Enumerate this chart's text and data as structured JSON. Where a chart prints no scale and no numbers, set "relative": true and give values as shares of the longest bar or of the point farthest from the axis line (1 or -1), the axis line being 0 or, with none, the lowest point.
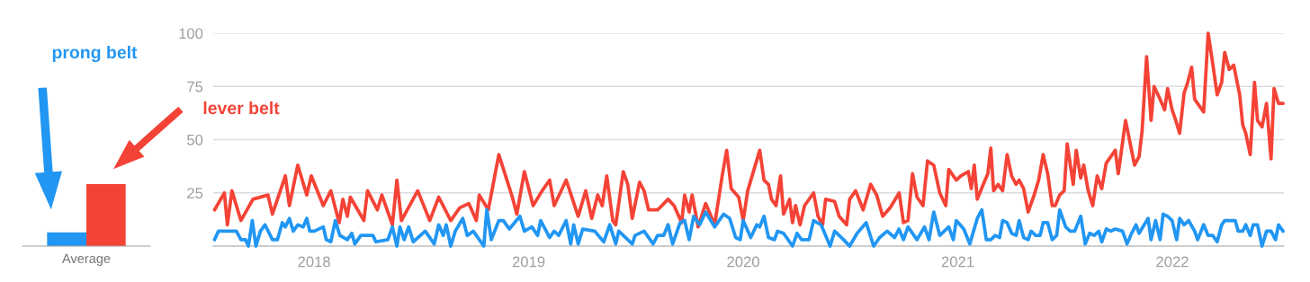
{
  "chart_data": [
    {
      "type": "bar",
      "categories": [
        "Average"
      ],
      "relative": true,
      "legend": false,
      "series": [
        {
          "name": "prong belt",
          "color": "#2196f3",
          "values": [
            0.22
          ]
        },
        {
          "name": "lever belt",
          "color": "#f44336",
          "values": [
            1
          ]
        }
      ]
    },
    {
      "type": "line",
      "xlim": [
        2017.53,
        2022.52
      ],
      "ylim": [
        0,
        100
      ],
      "yticks": [
        25,
        50,
        75,
        100
      ],
      "xticks": [
        {
          "value": 2018,
          "label": "2018"
        },
        {
          "value": 2019,
          "label": "2019"
        },
        {
          "value": 2020,
          "label": "2020"
        },
        {
          "value": 2021,
          "label": "2021"
        },
        {
          "value": 2022,
          "label": "2022"
        }
      ],
      "grid": "y",
      "legend": false,
      "marker": "none",
      "line_style": "solid",
      "series": [
        {
          "color": "#f44336",
          "x": [
            2017.536,
            2017.582,
            2017.596,
            2017.617,
            2017.659,
            2017.715,
            2017.785,
            2017.806,
            2017.866,
            2017.885,
            2017.924,
            2017.966,
            2017.987,
            2018.043,
            2018.078,
            2018.117,
            2018.134,
            2018.155,
            2018.169,
            2018.232,
            2018.249,
            2018.295,
            2018.316,
            2018.365,
            2018.386,
            2018.407,
            2018.483,
            2018.539,
            2018.581,
            2018.637,
            2018.679,
            2018.721,
            2018.756,
            2018.77,
            2018.812,
            2018.861,
            2018.924,
            2018.945,
            2018.98,
            2019.021,
            2019.063,
            2019.098,
            2019.119,
            2019.175,
            2019.231,
            2019.266,
            2019.294,
            2019.322,
            2019.343,
            2019.364,
            2019.392,
            2019.406,
            2019.441,
            2019.462,
            2019.483,
            2019.517,
            2019.538,
            2019.559,
            2019.601,
            2019.65,
            2019.678,
            2019.713,
            2019.727,
            2019.748,
            2019.762,
            2019.79,
            2019.825,
            2019.867,
            2019.902,
            2019.923,
            2019.944,
            2019.979,
            2020.0,
            2020.021,
            2020.077,
            2020.097,
            2020.118,
            2020.132,
            2020.153,
            2020.174,
            2020.188,
            2020.216,
            2020.23,
            2020.244,
            2020.265,
            2020.286,
            2020.328,
            2020.349,
            2020.37,
            2020.384,
            2020.426,
            2020.447,
            2020.482,
            2020.496,
            2020.524,
            2020.559,
            2020.594,
            2020.622,
            2020.65,
            2020.685,
            2020.727,
            2020.747,
            2020.768,
            2020.789,
            2020.81,
            2020.838,
            2020.859,
            2020.888,
            2020.916,
            2020.944,
            2020.958,
            2020.993,
            2021.014,
            2021.049,
            2021.063,
            2021.077,
            2021.091,
            2021.119,
            2021.14,
            2021.154,
            2021.167,
            2021.188,
            2021.209,
            2021.23,
            2021.251,
            2021.272,
            2021.286,
            2021.307,
            2021.328,
            2021.356,
            2021.377,
            2021.398,
            2021.419,
            2021.44,
            2021.454,
            2021.475,
            2021.496,
            2021.51,
            2021.538,
            2021.552,
            2021.573,
            2021.587,
            2021.608,
            2021.629,
            2021.65,
            2021.671,
            2021.692,
            2021.734,
            2021.748,
            2021.782,
            2021.824,
            2021.845,
            2021.859,
            2021.88,
            2021.901,
            2021.915,
            2021.943,
            2021.964,
            2021.978,
            2021.999,
            2022.013,
            2022.034,
            2022.055,
            2022.069,
            2022.09,
            2022.104,
            2022.125,
            2022.146,
            2022.167,
            2022.188,
            2022.209,
            2022.23,
            2022.244,
            2022.265,
            2022.286,
            2022.314,
            2022.328,
            2022.342,
            2022.363,
            2022.383,
            2022.397,
            2022.418,
            2022.439,
            2022.46,
            2022.474,
            2022.495,
            2022.516
          ],
          "values": [
            17,
            25,
            10,
            26,
            12,
            22,
            24,
            15,
            33,
            19,
            38,
            24,
            33,
            19,
            26,
            11,
            22,
            14,
            23,
            12,
            26,
            17,
            24,
            10,
            31,
            12,
            26,
            12,
            23,
            12,
            18,
            20,
            12,
            24,
            17,
            43,
            23,
            15,
            35,
            19,
            26,
            31,
            19,
            31,
            14,
            26,
            13,
            24,
            19,
            33,
            12,
            10,
            35,
            29,
            13,
            30,
            26,
            17,
            17,
            22,
            19,
            11,
            24,
            16,
            24,
            9,
            20,
            10,
            33,
            45,
            27,
            23,
            12,
            26,
            45,
            31,
            29,
            22,
            19,
            33,
            15,
            22,
            11,
            19,
            10,
            19,
            25,
            14,
            10,
            22,
            21,
            14,
            10,
            22,
            26,
            17,
            29,
            24,
            14,
            18,
            25,
            11,
            12,
            34,
            23,
            19,
            40,
            38,
            25,
            19,
            36,
            31,
            33,
            35,
            27,
            38,
            22,
            29,
            34,
            46,
            26,
            29,
            26,
            43,
            33,
            29,
            31,
            27,
            16,
            24,
            31,
            43,
            34,
            19,
            19,
            24,
            26,
            48,
            29,
            45,
            32,
            38,
            26,
            19,
            33,
            27,
            39,
            45,
            34,
            59,
            38,
            42,
            54,
            89,
            59,
            75,
            69,
            64,
            74,
            64,
            60,
            53,
            72,
            76,
            84,
            69,
            66,
            63,
            100,
            86,
            71,
            77,
            91,
            83,
            85,
            71,
            57,
            53,
            43,
            77,
            59,
            56,
            67,
            41,
            74,
            67,
            67
          ]
        },
        {
          "color": "#2196f3",
          "x": [
            2017.536,
            2017.554,
            2017.638,
            2017.659,
            2017.68,
            2017.694,
            2017.712,
            2017.729,
            2017.75,
            2017.771,
            2017.806,
            2017.829,
            2017.852,
            2017.866,
            2017.885,
            2017.903,
            2017.924,
            2017.949,
            2017.966,
            2017.98,
            2018.001,
            2018.043,
            2018.057,
            2018.078,
            2018.099,
            2018.12,
            2018.155,
            2018.176,
            2018.19,
            2018.218,
            2018.274,
            2018.288,
            2018.344,
            2018.365,
            2018.386,
            2018.4,
            2018.42,
            2018.441,
            2018.462,
            2018.518,
            2018.56,
            2018.581,
            2018.602,
            2018.616,
            2018.637,
            2018.658,
            2018.693,
            2018.714,
            2018.742,
            2018.791,
            2018.805,
            2018.826,
            2018.861,
            2018.882,
            2018.91,
            2018.959,
            2018.98,
            2019.015,
            2019.042,
            2019.056,
            2019.098,
            2019.119,
            2019.14,
            2019.175,
            2019.196,
            2019.21,
            2019.231,
            2019.252,
            2019.308,
            2019.35,
            2019.378,
            2019.406,
            2019.42,
            2019.483,
            2019.496,
            2019.538,
            2019.58,
            2019.601,
            2019.629,
            2019.65,
            2019.671,
            2019.706,
            2019.727,
            2019.748,
            2019.769,
            2019.797,
            2019.825,
            2019.867,
            2019.909,
            2019.937,
            2019.965,
            2019.986,
            2020.0,
            2020.035,
            2020.063,
            2020.077,
            2020.097,
            2020.118,
            2020.146,
            2020.16,
            2020.188,
            2020.23,
            2020.251,
            2020.272,
            2020.307,
            2020.328,
            2020.363,
            2020.405,
            2020.426,
            2020.468,
            2020.496,
            2020.531,
            2020.573,
            2020.608,
            2020.636,
            2020.671,
            2020.705,
            2020.726,
            2020.747,
            2020.768,
            2020.81,
            2020.845,
            2020.866,
            2020.888,
            2020.916,
            2020.958,
            2020.979,
            2020.993,
            2021.028,
            2021.056,
            2021.091,
            2021.112,
            2021.133,
            2021.154,
            2021.174,
            2021.195,
            2021.209,
            2021.23,
            2021.251,
            2021.272,
            2021.286,
            2021.307,
            2021.328,
            2021.342,
            2021.363,
            2021.384,
            2021.398,
            2021.419,
            2021.44,
            2021.461,
            2021.475,
            2021.503,
            2021.524,
            2021.545,
            2021.573,
            2021.594,
            2021.615,
            2021.636,
            2021.657,
            2021.671,
            2021.692,
            2021.713,
            2021.734,
            2021.768,
            2021.789,
            2021.81,
            2021.831,
            2021.845,
            2021.887,
            2021.901,
            2021.922,
            2021.943,
            2021.957,
            2021.978,
            2021.999,
            2022.02,
            2022.034,
            2022.055,
            2022.076,
            2022.104,
            2022.118,
            2022.146,
            2022.167,
            2022.188,
            2022.209,
            2022.23,
            2022.244,
            2022.293,
            2022.307,
            2022.328,
            2022.342,
            2022.363,
            2022.377,
            2022.397,
            2022.418,
            2022.439,
            2022.46,
            2022.481,
            2022.495,
            2022.516
          ],
          "values": [
            3,
            7,
            7,
            3,
            3,
            0,
            12,
            0,
            7,
            10,
            3,
            3,
            11,
            9,
            13,
            7,
            10,
            9,
            13,
            7,
            7,
            9,
            3,
            2,
            12,
            5,
            3,
            6,
            1,
            5,
            5,
            2,
            3,
            9,
            0,
            9,
            3,
            9,
            2,
            7,
            1,
            10,
            5,
            10,
            0,
            7,
            13,
            5,
            7,
            0,
            17,
            3,
            12,
            12,
            8,
            14,
            7,
            9,
            5,
            12,
            4,
            7,
            5,
            12,
            1,
            10,
            1,
            8,
            7,
            2,
            10,
            1,
            7,
            1,
            5,
            7,
            1,
            5,
            5,
            10,
            1,
            11,
            12,
            3,
            14,
            10,
            16,
            9,
            15,
            13,
            4,
            3,
            12,
            4,
            10,
            9,
            14,
            4,
            3,
            7,
            6,
            0,
            6,
            3,
            3,
            12,
            10,
            0,
            7,
            3,
            0,
            6,
            11,
            0,
            4,
            7,
            4,
            8,
            3,
            9,
            3,
            9,
            3,
            16,
            5,
            9,
            3,
            12,
            8,
            1,
            13,
            17,
            3,
            3,
            5,
            4,
            12,
            11,
            6,
            5,
            12,
            4,
            3,
            7,
            5,
            5,
            11,
            11,
            3,
            5,
            17,
            9,
            7,
            7,
            14,
            1,
            6,
            5,
            7,
            2,
            8,
            7,
            8,
            7,
            1,
            6,
            10,
            6,
            13,
            3,
            12,
            3,
            15,
            14,
            12,
            3,
            13,
            10,
            12,
            7,
            3,
            10,
            5,
            5,
            2,
            10,
            12,
            12,
            7,
            7,
            10,
            5,
            10,
            10,
            0,
            7,
            7,
            3,
            10,
            7
          ]
        }
      ]
    }
  ]
}
